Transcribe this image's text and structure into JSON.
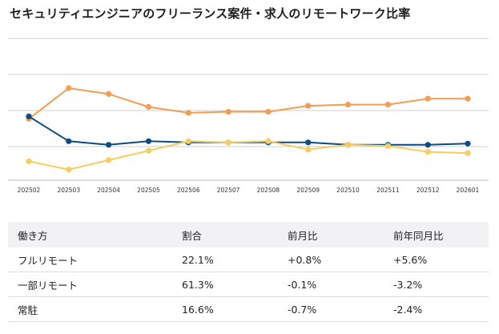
{
  "title": "セキュリティエンジニアのフリーランス案件・求人のリモートワーク比率",
  "chart_data": {
    "type": "line",
    "categories": [
      "202502",
      "202503",
      "202504",
      "202505",
      "202506",
      "202507",
      "202508",
      "202509",
      "202510",
      "202511",
      "202512",
      "202601"
    ],
    "series": [
      {
        "color": "#f39c53",
        "values": [
          62,
          88,
          83,
          72,
          67,
          68,
          68,
          73,
          74,
          74,
          79,
          79
        ]
      },
      {
        "color": "#0e4a82",
        "values": [
          64,
          43,
          40,
          43,
          42,
          42,
          42,
          42,
          40,
          40,
          40,
          41
        ]
      },
      {
        "color": "#f7cd5f",
        "values": [
          26,
          19,
          27,
          35,
          43,
          42,
          43,
          36,
          40,
          39,
          34,
          33
        ]
      }
    ],
    "ylim": [
      10,
      130
    ],
    "grid": true
  },
  "table": {
    "headers": [
      "働き方",
      "割合",
      "前月比",
      "前年同月比"
    ],
    "rows": [
      [
        "フルリモート",
        "22.1%",
        "+0.8%",
        "+5.6%"
      ],
      [
        "一部リモート",
        "61.3%",
        "-0.1%",
        "-3.2%"
      ],
      [
        "常駐",
        "16.6%",
        "-0.7%",
        "-2.4%"
      ]
    ]
  }
}
